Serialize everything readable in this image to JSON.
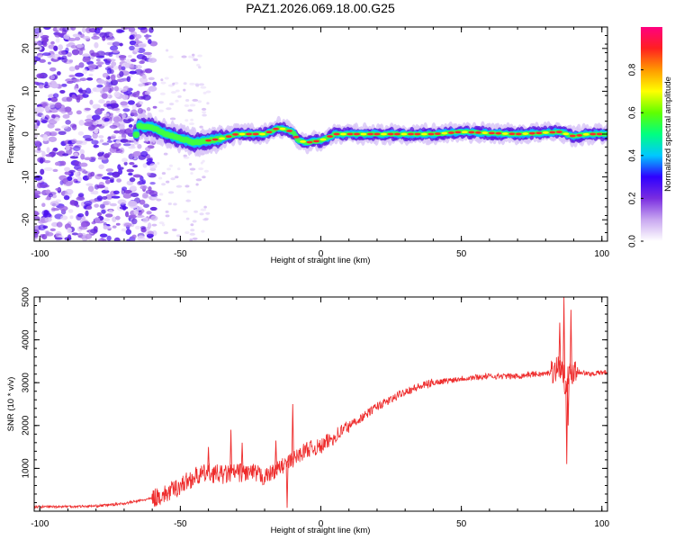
{
  "figure_title": "PAZ1.2026.069.18.00.G25",
  "chart_data": [
    {
      "type": "heatmap",
      "name": "spectrogram",
      "xlabel": "Height of straight line (km)",
      "ylabel": "Frequency (Hz)",
      "xlim": [
        -102,
        102
      ],
      "ylim": [
        -25,
        25
      ],
      "xticks": [
        -100,
        -50,
        0,
        50,
        100
      ],
      "yticks": [
        -20,
        -10,
        0,
        10,
        20
      ],
      "colorbar": {
        "label": "Normalized spectral amplitude",
        "range": [
          0,
          1
        ],
        "ticks": [
          0.0,
          0.2,
          0.4,
          0.6,
          0.8
        ],
        "tick_labels": [
          "0.0",
          "0.2",
          "0.4",
          "0.6",
          "0.8"
        ],
        "colors": [
          "#ffffff",
          "#c9a8f0",
          "#7a2ee0",
          "#2f00ff",
          "#00c8ff",
          "#00ff80",
          "#60ff00",
          "#ffff00",
          "#ff9900",
          "#ff2020",
          "#ff0080"
        ]
      },
      "noise_region_x": [
        -102,
        -65
      ],
      "signal_trace": [
        {
          "x": -65,
          "f": 2.0
        },
        {
          "x": -60,
          "f": 1.5
        },
        {
          "x": -55,
          "f": 0.0
        },
        {
          "x": -50,
          "f": -1.0
        },
        {
          "x": -45,
          "f": -2.0
        },
        {
          "x": -40,
          "f": -1.5
        },
        {
          "x": -35,
          "f": -1.0
        },
        {
          "x": -30,
          "f": 0.0
        },
        {
          "x": -25,
          "f": 0.0
        },
        {
          "x": -20,
          "f": 0.0
        },
        {
          "x": -15,
          "f": 1.5
        },
        {
          "x": -10,
          "f": 0.5
        },
        {
          "x": -8,
          "f": -1.5
        },
        {
          "x": -5,
          "f": -2.0
        },
        {
          "x": 0,
          "f": -1.5
        },
        {
          "x": 5,
          "f": 0.0
        },
        {
          "x": 20,
          "f": 0.0
        },
        {
          "x": 40,
          "f": 0.0
        },
        {
          "x": 50,
          "f": 0.5
        },
        {
          "x": 70,
          "f": 0.0
        },
        {
          "x": 85,
          "f": 0.5
        },
        {
          "x": 90,
          "f": -0.5
        },
        {
          "x": 95,
          "f": 0.0
        },
        {
          "x": 102,
          "f": 0.0
        }
      ]
    },
    {
      "type": "line",
      "name": "snr",
      "xlabel": "Height of straight line (km)",
      "ylabel": "SNR (10 * v/v)",
      "xlim": [
        -102,
        102
      ],
      "ylim": [
        0,
        5000
      ],
      "xticks": [
        -100,
        -50,
        0,
        50,
        100
      ],
      "yticks": [
        1000,
        2000,
        3000,
        4000,
        5000
      ],
      "color": "#ee2b2b",
      "series": [
        {
          "name": "SNR",
          "points": [
            {
              "x": -102,
              "y": 100
            },
            {
              "x": -80,
              "y": 120
            },
            {
              "x": -70,
              "y": 180
            },
            {
              "x": -60,
              "y": 300
            },
            {
              "x": -55,
              "y": 400
            },
            {
              "x": -50,
              "y": 600
            },
            {
              "x": -45,
              "y": 800
            },
            {
              "x": -40,
              "y": 900
            },
            {
              "x": -35,
              "y": 850
            },
            {
              "x": -30,
              "y": 900
            },
            {
              "x": -25,
              "y": 900
            },
            {
              "x": -20,
              "y": 800
            },
            {
              "x": -15,
              "y": 1000
            },
            {
              "x": -10,
              "y": 1200
            },
            {
              "x": -5,
              "y": 1450
            },
            {
              "x": 0,
              "y": 1500
            },
            {
              "x": 5,
              "y": 1750
            },
            {
              "x": 10,
              "y": 2000
            },
            {
              "x": 15,
              "y": 2200
            },
            {
              "x": 20,
              "y": 2450
            },
            {
              "x": 25,
              "y": 2600
            },
            {
              "x": 30,
              "y": 2800
            },
            {
              "x": 35,
              "y": 2900
            },
            {
              "x": 40,
              "y": 3000
            },
            {
              "x": 50,
              "y": 3100
            },
            {
              "x": 60,
              "y": 3150
            },
            {
              "x": 70,
              "y": 3150
            },
            {
              "x": 75,
              "y": 3200
            },
            {
              "x": 80,
              "y": 3200
            },
            {
              "x": 83,
              "y": 3300
            },
            {
              "x": 85,
              "y": 3400
            },
            {
              "x": 87,
              "y": 3000
            },
            {
              "x": 90,
              "y": 3300
            },
            {
              "x": 95,
              "y": 3200
            },
            {
              "x": 102,
              "y": 3250
            }
          ]
        }
      ],
      "spikes": [
        {
          "x": -40,
          "y": 1500
        },
        {
          "x": -32,
          "y": 1900
        },
        {
          "x": -28,
          "y": 1600
        },
        {
          "x": -16,
          "y": 1650
        },
        {
          "x": -10,
          "y": 2500
        },
        {
          "x": -12,
          "y": 80
        },
        {
          "x": 85,
          "y": 4400
        },
        {
          "x": 86.5,
          "y": 5000
        },
        {
          "x": 87.5,
          "y": 1100
        },
        {
          "x": 89,
          "y": 4700
        },
        {
          "x": 88,
          "y": 2000
        }
      ]
    }
  ]
}
